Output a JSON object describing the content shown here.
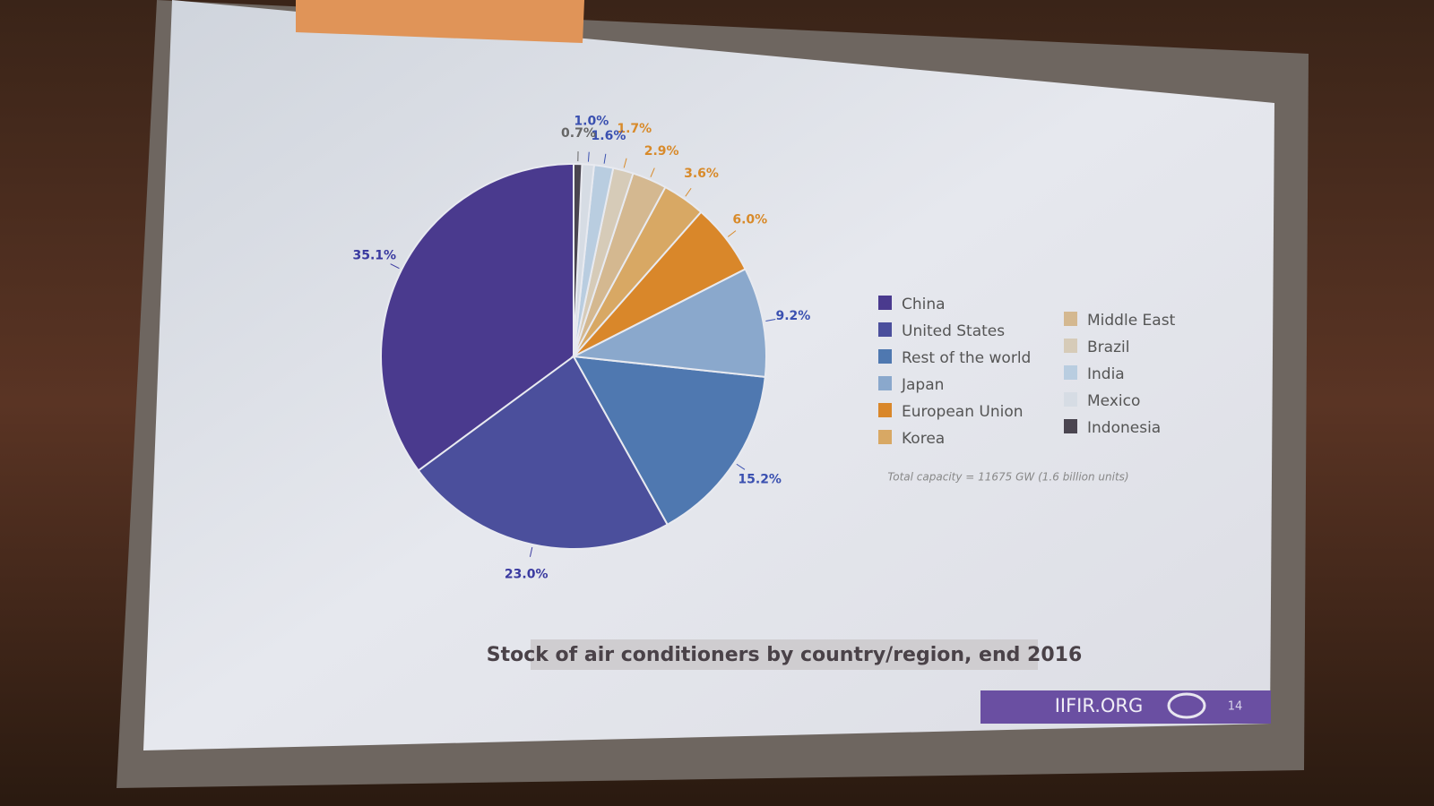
{
  "chart_data": {
    "type": "pie",
    "title": "Stock of air conditioners  by country/region, end 2016",
    "note": "Total capacity = 11675 GW (1.6 billion units)",
    "categories": [
      "China",
      "United States",
      "Rest of the world",
      "Japan",
      "European Union",
      "Korea",
      "Middle East",
      "Brazil",
      "India",
      "Mexico",
      "Indonesia"
    ],
    "values": [
      35.1,
      23.0,
      15.2,
      9.2,
      6.0,
      3.6,
      2.9,
      1.7,
      1.6,
      1.0,
      0.7
    ],
    "value_labels": [
      "35.1%",
      "23.0%",
      "15.2%",
      "9.2%",
      "6.0%",
      "3.6%",
      "2.9%",
      "1.7%",
      "1.6%",
      "1.0%",
      "0.7%"
    ],
    "colors": [
      "#4a3a8e",
      "#4b4f9c",
      "#4f78b0",
      "#8aa8cc",
      "#d9872a",
      "#d8a864",
      "#d4b890",
      "#d6cbb8",
      "#b9cde0",
      "#d6dce4",
      "#4a4550"
    ],
    "label_colors": [
      "#3a3aa0",
      "#3a3aa0",
      "#3a50b0",
      "#3a50b0",
      "#d88a2a",
      "#d88a2a",
      "#d88a2a",
      "#d88a2a",
      "#3a50b0",
      "#3a50b0",
      "#666666"
    ],
    "startangle": 90,
    "direction": "counterclockwise",
    "legend_columns": 2
  },
  "footer": {
    "site": "IIFIR.ORG",
    "page": "14"
  }
}
